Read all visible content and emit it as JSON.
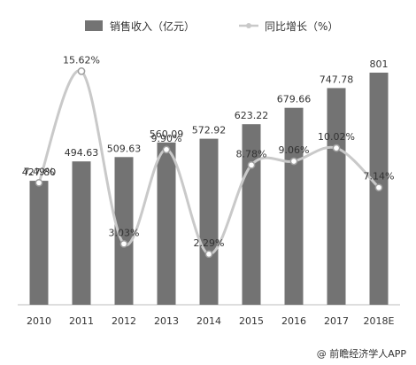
{
  "chart_data": {
    "type": "bar",
    "categories": [
      "2010",
      "2011",
      "2012",
      "2013",
      "2014",
      "2015",
      "2016",
      "2017",
      "2018E"
    ],
    "series": [
      {
        "name": "销售收入（亿元）",
        "type": "bar",
        "color": "#737373",
        "values": [
          427.8,
          494.63,
          509.63,
          560.09,
          572.92,
          623.22,
          679.66,
          747.78,
          801
        ],
        "labels": [
          "427.80",
          "494.63",
          "509.63",
          "560.09",
          "572.92",
          "623.22",
          "679.66",
          "747.78",
          "801"
        ]
      },
      {
        "name": "同比增长（%）",
        "type": "line",
        "smooth": true,
        "color": "#c9c9c9",
        "values": [
          7.49,
          15.62,
          3.03,
          9.9,
          2.29,
          8.78,
          9.06,
          10.02,
          7.14
        ],
        "labels": [
          "7.49%",
          "15.62%",
          "3.03%",
          "9.90%",
          "2.29%",
          "8.78%",
          "9.06%",
          "10.02%",
          "7.14%"
        ]
      }
    ],
    "legend": "top",
    "grid": false
  },
  "footer": {
    "credit": "@ 前瞻经济学人APP"
  }
}
